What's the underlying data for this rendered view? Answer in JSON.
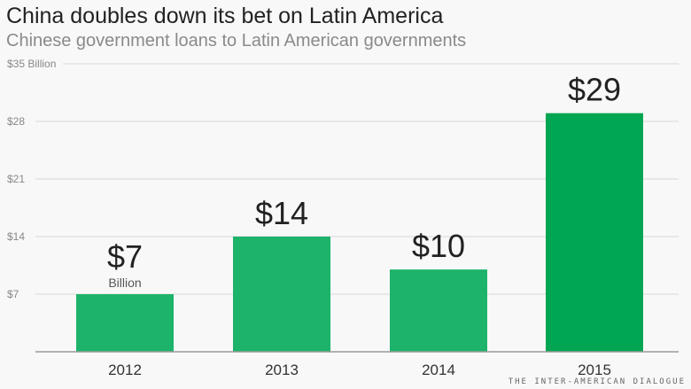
{
  "title": "China doubles down its bet on Latin America",
  "subtitle": "Chinese government loans to Latin American governments",
  "source": "THE INTER-AMERICAN DIALOGUE",
  "chart_data": {
    "type": "bar",
    "categories": [
      "2012",
      "2013",
      "2014",
      "2015"
    ],
    "values": [
      7,
      14,
      10,
      29
    ],
    "data_labels": [
      "$7",
      "$14",
      "$10",
      "$29"
    ],
    "first_label_unit": "Billion",
    "yticks": [
      7,
      14,
      21,
      28,
      35
    ],
    "ytick_labels": [
      "$7",
      "$14",
      "$21",
      "$28",
      "$35 Billion"
    ],
    "ylim": [
      0,
      35
    ],
    "grid": true,
    "colors": {
      "bar": "#1db36a",
      "highlight": "#00a651",
      "grid": "#d8d8d8",
      "axis": "#999999"
    }
  }
}
